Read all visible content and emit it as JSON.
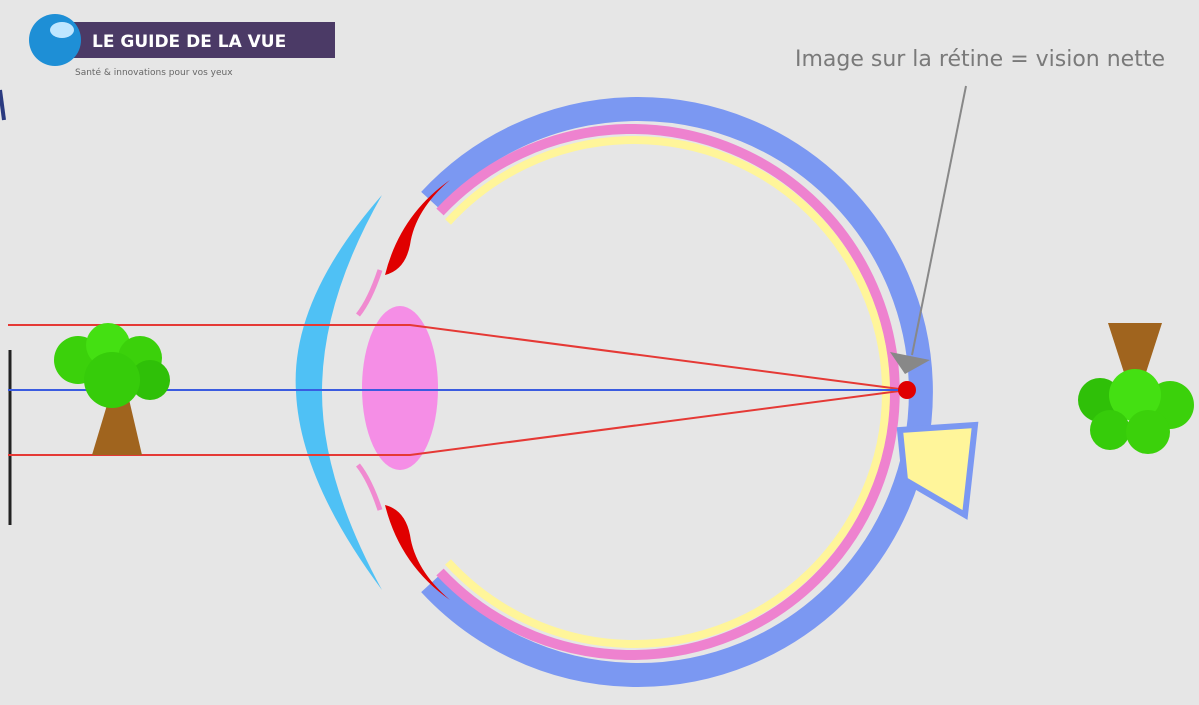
{
  "logo": {
    "title": "LE GUIDE DE LA VUE",
    "tagline": "Santé & innovations pour vos yeux"
  },
  "annotation": "Image sur la rétine = vision nette"
}
